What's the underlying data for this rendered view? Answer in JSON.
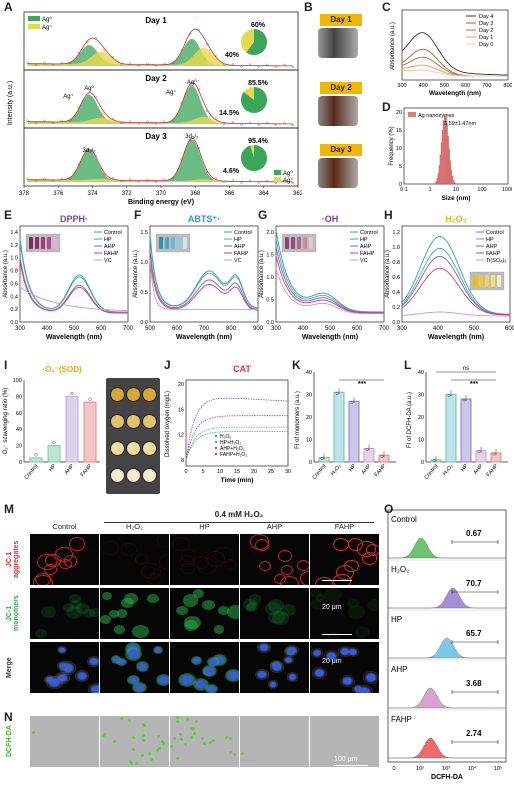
{
  "labels": [
    "A",
    "B",
    "C",
    "D",
    "E",
    "F",
    "G",
    "H",
    "I",
    "J",
    "K",
    "L",
    "M",
    "N",
    "O"
  ],
  "panelA": {
    "ylabel": "Intensity (a.u.)",
    "xlabel": "Binding energy (eV)",
    "xticks": [
      "378",
      "376",
      "374",
      "372",
      "370",
      "368",
      "366",
      "364",
      "362"
    ],
    "rows": [
      {
        "day": "Day 1",
        "pie": [
          "60%",
          "40%"
        ],
        "peak_labels": []
      },
      {
        "day": "Day 2",
        "pie": [
          "85.5%",
          "14.5%"
        ],
        "peak_labels": [
          "Ag⁰",
          "Ag⁰",
          "Ag⁺",
          "Ag⁺"
        ]
      },
      {
        "day": "Day 3",
        "pie": [
          "95.4%",
          "4.6%"
        ],
        "peak_labels": [
          "3d₃/₂",
          "3d₅/₂"
        ]
      }
    ],
    "legend": [
      "Ag⁰",
      "Ag⁺"
    ],
    "colors": {
      "ag0": "#3aa55b",
      "agplus": "#e8d94a"
    }
  },
  "panelB": {
    "days": [
      "Day 1",
      "Day 2",
      "Day 3"
    ]
  },
  "panelC": {
    "ylabel": "Absorbance (a.u.)",
    "xlabel": "Wavelength (nm)",
    "xticks": [
      "300",
      "400",
      "500",
      "600",
      "700",
      "800"
    ],
    "legend": [
      "Day 4",
      "Day 3",
      "Day 2",
      "Day 1",
      "Day 0"
    ],
    "colors": [
      "#333333",
      "#8a6a3a",
      "#c46a3a",
      "#e09a60",
      "#f0c890"
    ]
  },
  "panelD": {
    "ylabel": "Frequency (%)",
    "xlabel": "Size (nm)",
    "xticks": [
      "0.1",
      "1",
      "10",
      "100",
      "1000"
    ],
    "yticks": [
      "0",
      "5",
      "10",
      "15",
      "20"
    ],
    "legend": "Ag nanozymes",
    "annotation": "3.59±1.47nm"
  },
  "rowE": {
    "panels": [
      {
        "title": "DPPH·",
        "title_color": "#7b3fa0",
        "xticks": [
          "300",
          "400",
          "500",
          "600",
          "700"
        ],
        "yticks": [
          "0.0",
          "0.2",
          "0.4",
          "0.6",
          "0.8",
          "1.0",
          "1.2",
          "1.4"
        ],
        "legend": [
          "Control",
          "HP",
          "AHP",
          "FAHP",
          "VC"
        ]
      },
      {
        "title": "ABTS⁺·",
        "title_color": "#1f9ad6",
        "xticks": [
          "500",
          "600",
          "700",
          "800",
          "900"
        ],
        "yticks": [
          "0.0",
          "0.5",
          "1.0",
          "1.5"
        ],
        "legend": [
          "Control",
          "HP",
          "AHP",
          "FAHP",
          "VC"
        ]
      },
      {
        "title": "·OH",
        "title_color": "#7b3fa0",
        "xticks": [
          "300",
          "400",
          "500",
          "600",
          "700"
        ],
        "yticks": [
          "0.0",
          "0.5",
          "1.0",
          "1.5",
          "2.0"
        ],
        "legend": [
          "Control",
          "HP",
          "AHP",
          "FAHP",
          "VC"
        ]
      },
      {
        "title": "H₂O₂",
        "title_color": "#e7b41d",
        "xticks": [
          "300",
          "400",
          "500",
          "600"
        ],
        "yticks": [
          "0.0",
          "0.2",
          "0.4",
          "0.6",
          "0.8",
          "1.0",
          "1.2"
        ],
        "legend": [
          "Control",
          "HP",
          "AHP",
          "FAHP",
          "Ti(SO₄)₂"
        ]
      }
    ],
    "ylabel": "Absorbance (a.u.)",
    "xlabel": "Wavelength (nm)",
    "colors": [
      "#3aa58a",
      "#4ca5c8",
      "#7b63b8",
      "#d23c6a",
      "#d993b8"
    ]
  },
  "panelI": {
    "title": "·O₂⁻(SOD)",
    "ylabel": "·O₂⁻ scavenging ratio (%)",
    "categories": [
      "Control",
      "HP",
      "AHP",
      "FAHP"
    ],
    "values": [
      5,
      20,
      80,
      73
    ],
    "yticks": [
      "0",
      "20",
      "40",
      "60",
      "80",
      "100"
    ]
  },
  "panelJ": {
    "title": "CAT",
    "ylabel": "Dissolved oxygen (mg/L)",
    "xlabel": "Time (min)",
    "xticks": [
      "0",
      "5",
      "10",
      "15",
      "20",
      "25",
      "30"
    ],
    "yticks": [
      "8",
      "12",
      "16",
      "20"
    ],
    "legend": [
      "H₂O₂",
      "HP+H₂O₂",
      "AHP+H₂O₂",
      "FAHP+H₂O₂"
    ]
  },
  "panelK": {
    "ylabel": "FI of monomers (a.u.)",
    "categories": [
      "Control",
      "H₂O₂",
      "HP",
      "AHP",
      "FAHP"
    ],
    "values": [
      2,
      31,
      27,
      6,
      3
    ],
    "yticks": [
      "0",
      "10",
      "20",
      "30",
      "40"
    ],
    "sig": "***"
  },
  "panelL": {
    "ylabel": "FI of DCFH-DA (a.u.)",
    "categories": [
      "Control",
      "H₂O₂",
      "HP",
      "AHP",
      "FAHP"
    ],
    "values": [
      1,
      30,
      28,
      5,
      4
    ],
    "yticks": [
      "0",
      "10",
      "20",
      "30",
      "40"
    ],
    "sig": "***",
    "ns": "ns"
  },
  "panelM": {
    "header": "0.4 mM H₂O₂",
    "columns": [
      "Control",
      "H₂O₂",
      "HP",
      "AHP",
      "FAHP"
    ],
    "rows": [
      "JC-1 aggregates",
      "JC-1 monomers",
      "Merge"
    ],
    "scale": "20 μm"
  },
  "panelN": {
    "row": "DCFH-DA",
    "scale": "100 μm"
  },
  "panelO": {
    "samples": [
      "Control",
      "H₂O₂",
      "HP",
      "AHP",
      "FAHP"
    ],
    "values": [
      "0.67",
      "70.7",
      "65.7",
      "3.68",
      "2.74"
    ],
    "xlabel": "DCFH-DA",
    "xticks": [
      "0",
      "10²",
      "10³",
      "10⁴",
      "10⁵"
    ],
    "colors": [
      "#6cc36b",
      "#a58ed6",
      "#7cc7e8",
      "#d9a2cf",
      "#ef6a6a"
    ]
  }
}
